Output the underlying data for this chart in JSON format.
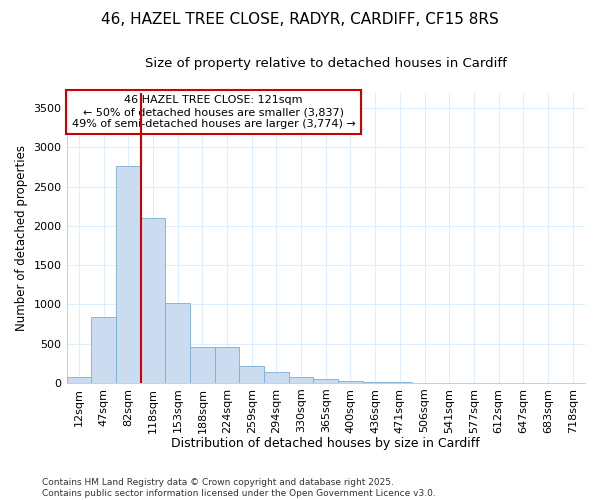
{
  "title_line1": "46, HAZEL TREE CLOSE, RADYR, CARDIFF, CF15 8RS",
  "title_line2": "Size of property relative to detached houses in Cardiff",
  "xlabel": "Distribution of detached houses by size in Cardiff",
  "ylabel": "Number of detached properties",
  "categories": [
    "12sqm",
    "47sqm",
    "82sqm",
    "118sqm",
    "153sqm",
    "188sqm",
    "224sqm",
    "259sqm",
    "294sqm",
    "330sqm",
    "365sqm",
    "400sqm",
    "436sqm",
    "471sqm",
    "506sqm",
    "541sqm",
    "577sqm",
    "612sqm",
    "647sqm",
    "683sqm",
    "718sqm"
  ],
  "bar_heights": [
    75,
    840,
    2760,
    2100,
    1020,
    455,
    455,
    210,
    140,
    70,
    50,
    28,
    10,
    5,
    2,
    1,
    1,
    0,
    0,
    0,
    0
  ],
  "bar_color": "#ccdcf0",
  "bar_edge_color": "#7aaed4",
  "vline_x_index": 3,
  "vline_color": "#cc0000",
  "annotation_title": "46 HAZEL TREE CLOSE: 121sqm",
  "annotation_line2": "← 50% of detached houses are smaller (3,837)",
  "annotation_line3": "49% of semi-detached houses are larger (3,774) →",
  "annotation_box_color": "#cc0000",
  "ylim": [
    0,
    3700
  ],
  "yticks": [
    0,
    500,
    1000,
    1500,
    2000,
    2500,
    3000,
    3500
  ],
  "footer_line1": "Contains HM Land Registry data © Crown copyright and database right 2025.",
  "footer_line2": "Contains public sector information licensed under the Open Government Licence v3.0.",
  "bg_color": "#ffffff",
  "grid_color": "#ddeeff",
  "title_fontsize": 11,
  "subtitle_fontsize": 9.5,
  "tick_fontsize": 8,
  "ylabel_fontsize": 8.5,
  "xlabel_fontsize": 9,
  "footer_fontsize": 6.5
}
